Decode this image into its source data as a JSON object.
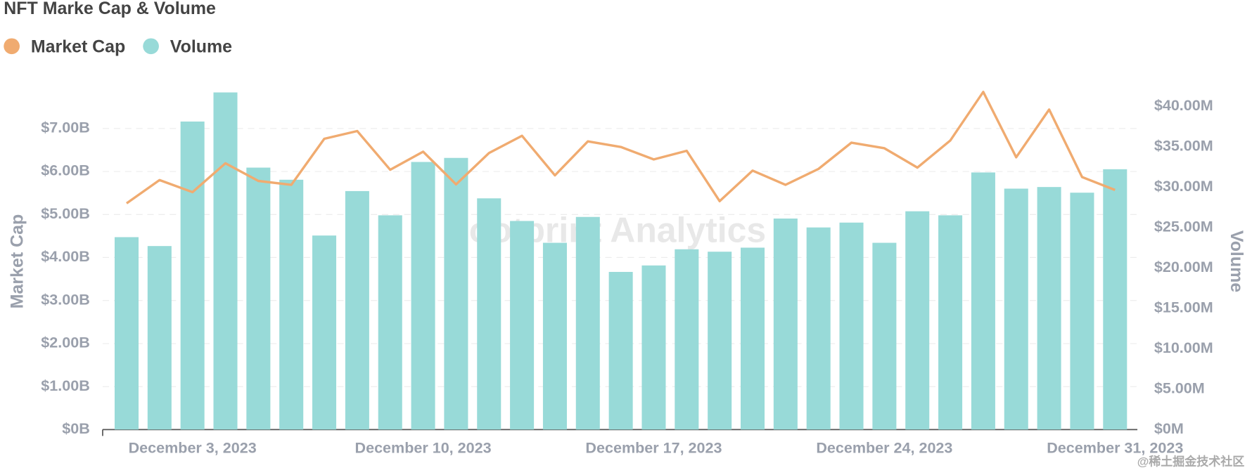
{
  "chart_data": {
    "type": "combo",
    "title": "NFT Marke Cap & Volume",
    "watermark": "Footprint Analytics",
    "credit": "@稀土掘金技术社区",
    "ylabel": "Market Cap",
    "y2label": "Volume",
    "categories": [
      null,
      null,
      "December 3, 2023",
      null,
      null,
      null,
      null,
      null,
      null,
      "December 10, 2023",
      null,
      null,
      null,
      null,
      null,
      null,
      "December 17, 2023",
      null,
      null,
      null,
      null,
      null,
      null,
      "December 24, 2023",
      null,
      null,
      null,
      null,
      null,
      null,
      "December 31, 2023"
    ],
    "series": [
      {
        "name": "Market Cap",
        "type": "line",
        "axis": "y",
        "color": "#f0ab70",
        "values": [
          5.26,
          5.8,
          5.52,
          6.19,
          5.78,
          5.69,
          6.76,
          6.94,
          6.04,
          6.46,
          5.7,
          6.43,
          6.83,
          5.91,
          6.7,
          6.57,
          6.28,
          6.48,
          5.31,
          6.02,
          5.69,
          6.06,
          6.67,
          6.54,
          6.09,
          6.72,
          7.85,
          6.33,
          7.44,
          5.87,
          5.57
        ]
      },
      {
        "name": "Volume",
        "type": "bar",
        "axis": "y2",
        "color": "#98dad8",
        "values": [
          23.8,
          22.7,
          38.1,
          41.7,
          32.4,
          30.9,
          24.0,
          29.5,
          26.5,
          33.1,
          33.6,
          28.6,
          25.8,
          23.1,
          26.3,
          19.5,
          20.3,
          22.3,
          22.0,
          22.5,
          26.1,
          25.0,
          25.6,
          23.1,
          27.0,
          26.5,
          31.8,
          29.8,
          30.0,
          29.3,
          32.2
        ]
      }
    ],
    "ylim": [
      0,
      7.8
    ],
    "yticks": [
      {
        "value": 0,
        "label": "$0B"
      },
      {
        "value": 1,
        "label": "$1.00B"
      },
      {
        "value": 2,
        "label": "$2.00B"
      },
      {
        "value": 3,
        "label": "$3.00B"
      },
      {
        "value": 4,
        "label": "$4.00B"
      },
      {
        "value": 5,
        "label": "$5.00B"
      },
      {
        "value": 6,
        "label": "$6.00B"
      },
      {
        "value": 7,
        "label": "$7.00B"
      }
    ],
    "y2lim": [
      0,
      41.5
    ],
    "y2ticks": [
      {
        "value": 0,
        "label": "$0M"
      },
      {
        "value": 5,
        "label": "$5.00M"
      },
      {
        "value": 10,
        "label": "$10.00M"
      },
      {
        "value": 15,
        "label": "$15.00M"
      },
      {
        "value": 20,
        "label": "$20.00M"
      },
      {
        "value": 25,
        "label": "$25.00M"
      },
      {
        "value": 30,
        "label": "$30.00M"
      },
      {
        "value": 35,
        "label": "$35.00M"
      },
      {
        "value": 40,
        "label": "$40.00M"
      }
    ],
    "grid": true
  }
}
